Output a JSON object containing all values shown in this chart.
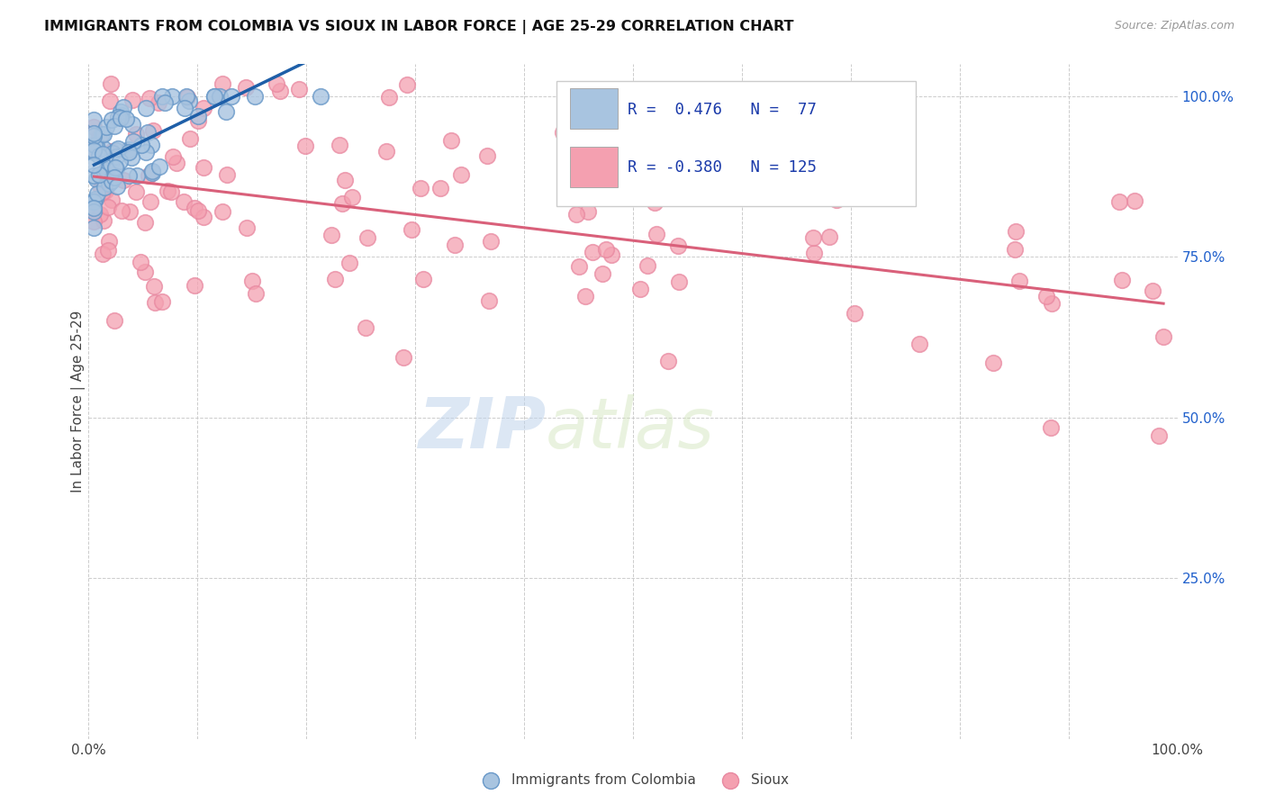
{
  "title": "IMMIGRANTS FROM COLOMBIA VS SIOUX IN LABOR FORCE | AGE 25-29 CORRELATION CHART",
  "source": "Source: ZipAtlas.com",
  "ylabel": "In Labor Force | Age 25-29",
  "xlim": [
    0.0,
    1.0
  ],
  "ylim": [
    0.0,
    1.05
  ],
  "colombia_R": 0.476,
  "colombia_N": 77,
  "sioux_R": -0.38,
  "sioux_N": 125,
  "colombia_color": "#a8c4e0",
  "sioux_color": "#f4a0b0",
  "colombia_line_color": "#1e5fa8",
  "sioux_line_color": "#d9607a",
  "legend_text_color": "#1a3aaa",
  "background_color": "#ffffff",
  "colombia_marker_edge": "#6898c8",
  "sioux_marker_edge": "#e888a0"
}
